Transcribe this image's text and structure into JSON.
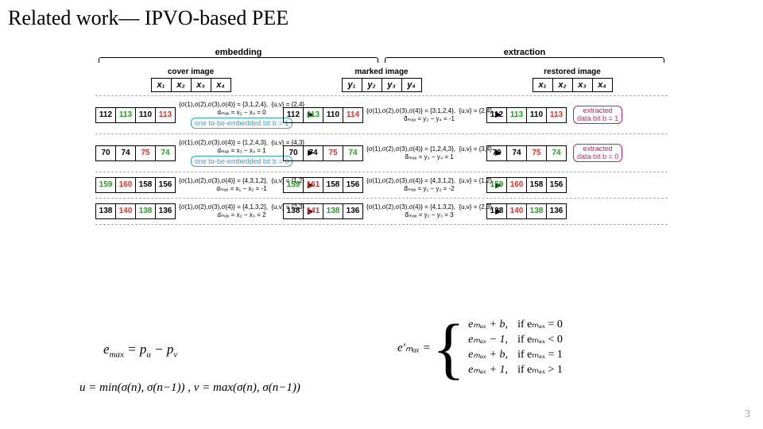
{
  "title": "Related work— IPVO-based PEE",
  "page_number": "3",
  "colors": {
    "black": "#000000",
    "red": "#e5302a",
    "green": "#1fa01f",
    "bit_border": "#2ba8d8",
    "ext_border": "#d81b60",
    "dash": "#aaaaaa"
  },
  "phases": {
    "embedding": "embedding",
    "extraction": "extraction"
  },
  "columns": {
    "cover": "cover image",
    "marked": "marked image",
    "restored": "restored image"
  },
  "vars": {
    "x": [
      "x₁",
      "x₂",
      "x₃",
      "x₄"
    ],
    "y": [
      "y₁",
      "y₂",
      "y₃",
      "y₄"
    ],
    "xr": [
      "x₁",
      "x₂",
      "x₃",
      "x₄"
    ]
  },
  "rows": [
    {
      "cover": {
        "vals": [
          "112",
          "113",
          "110",
          "113"
        ],
        "colidx": [
          "k",
          "g",
          "k",
          "r"
        ]
      },
      "ann1": {
        "sigma": "{σ(1),σ(2),σ(3),σ(4)} = {3,1,2,4},  {u,v} = {2,4}",
        "d": "dₘₐₓ = x₂ − x₄ = 0",
        "bit": "one to-be-embedded bit b = 1"
      },
      "marked": {
        "vals": [
          "112",
          "113",
          "110",
          "114"
        ],
        "colidx": [
          "k",
          "g",
          "k",
          "r"
        ]
      },
      "ann2": {
        "sigma": "{σ(1),σ(2),σ(3),σ(4)} = {3,1,2,4},  {u,v} = {2,4}",
        "d": "d̃ₘₐₓ = y₂ − y₄ = -1"
      },
      "restored": {
        "vals": [
          "112",
          "113",
          "110",
          "113"
        ],
        "colidx": [
          "k",
          "g",
          "k",
          "r"
        ]
      },
      "ext": "extracted\ndata bit b = 1"
    },
    {
      "cover": {
        "vals": [
          "70",
          "74",
          "75",
          "74"
        ],
        "colidx": [
          "k",
          "k",
          "r",
          "g"
        ]
      },
      "ann1": {
        "sigma": "{σ(1),σ(2),σ(3),σ(4)} = {1,2,4,3},  {u,v} = {4,3}",
        "d": "dₘₐₓ = x₃ − x₄ = 1",
        "bit": "one to-be-embedded bit b = 0"
      },
      "marked": {
        "vals": [
          "70",
          "74",
          "75",
          "74"
        ],
        "colidx": [
          "k",
          "k",
          "r",
          "g"
        ]
      },
      "ann2": {
        "sigma": "{σ(1),σ(2),σ(3),σ(4)} = {1,2,4,3},  {u,v} = {3,4}",
        "d": "d̃ₘₐₓ = y₃ − y₄ = 1"
      },
      "restored": {
        "vals": [
          "70",
          "74",
          "75",
          "74"
        ],
        "colidx": [
          "k",
          "k",
          "r",
          "g"
        ]
      },
      "ext": "extracted\ndata bit b = 0"
    },
    {
      "cover": {
        "vals": [
          "159",
          "160",
          "158",
          "156"
        ],
        "colidx": [
          "g",
          "r",
          "k",
          "k"
        ]
      },
      "ann1": {
        "sigma": "{σ(1),σ(2),σ(3),σ(4)} = {4,3,1,2},  {u,v} = {1,2}",
        "d": "dₘₐₓ = x₁ − x₂ = -1"
      },
      "marked": {
        "vals": [
          "159",
          "161",
          "158",
          "156"
        ],
        "colidx": [
          "g",
          "r",
          "k",
          "k"
        ]
      },
      "ann2": {
        "sigma": "{σ(1),σ(2),σ(3),σ(4)} = {4,3,1,2},  {u,v} = {1,2}",
        "d": "d̃ₘₐₓ = y₁ − y₂ = -2"
      },
      "restored": {
        "vals": [
          "159",
          "160",
          "158",
          "156"
        ],
        "colidx": [
          "g",
          "r",
          "k",
          "k"
        ]
      }
    },
    {
      "cover": {
        "vals": [
          "138",
          "140",
          "138",
          "136"
        ],
        "colidx": [
          "k",
          "r",
          "g",
          "k"
        ]
      },
      "ann1": {
        "sigma": "{σ(1),σ(2),σ(3),σ(4)} = {4,1,3,2},  {u,v} = {2,3}",
        "d": "dₘₐₓ = x₂ − x₃ = 2"
      },
      "marked": {
        "vals": [
          "138",
          "141",
          "138",
          "136"
        ],
        "colidx": [
          "k",
          "r",
          "g",
          "k"
        ]
      },
      "ann2": {
        "sigma": "{σ(1),σ(2),σ(3),σ(4)} = {4,1,3,2},  {u,v} = {2,3}",
        "d": "d̃ₘₐₓ = y₂ − y₃ = 3"
      },
      "restored": {
        "vals": [
          "138",
          "140",
          "138",
          "136"
        ],
        "colidx": [
          "k",
          "r",
          "g",
          "k"
        ]
      }
    }
  ],
  "eq": {
    "emax": "eₘₐₓ = p_u − p_v",
    "uv": "u = min(σ(n), σ(n−1)) , v = max(σ(n), σ(n−1))",
    "lhs": "e′ₘₐₓ  =",
    "cases": [
      {
        "val": "eₘₐₓ + b,",
        "cond": "if eₘₐₓ = 0"
      },
      {
        "val": "eₘₐₓ − 1,",
        "cond": "if eₘₐₓ < 0"
      },
      {
        "val": "eₘₐₓ + b,",
        "cond": "if eₘₐₓ = 1"
      },
      {
        "val": "eₘₐₓ + 1,",
        "cond": "if eₘₐₓ > 1"
      }
    ]
  }
}
